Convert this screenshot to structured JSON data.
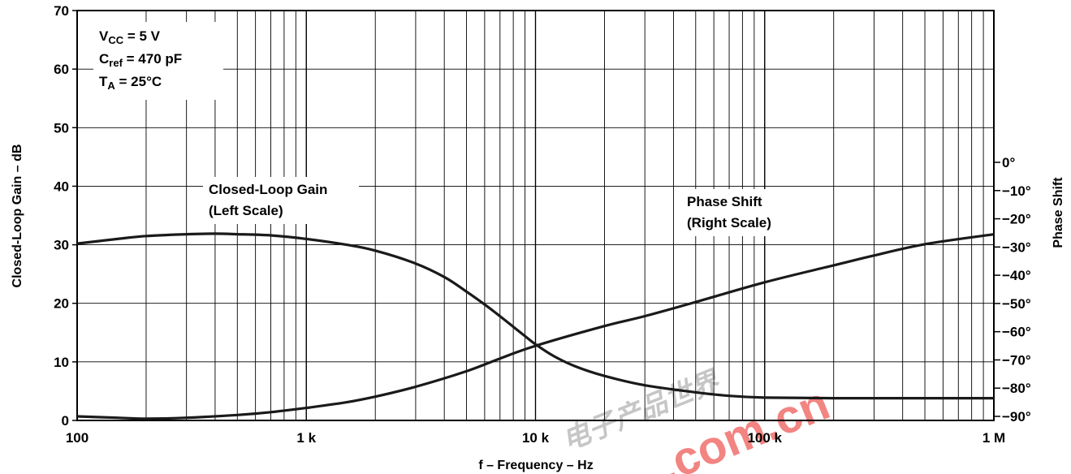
{
  "chart_data": {
    "type": "line",
    "xlabel": "f – Frequency – Hz",
    "ylabel_left": "Closed-Loop Gain – dB",
    "ylabel_right": "Phase Shift",
    "x_scale": "log",
    "xlim": [
      100,
      1000000
    ],
    "ylim_left": [
      0,
      70
    ],
    "ylim_right": [
      -90,
      0
    ],
    "x_ticks": [
      {
        "value": 100,
        "label": "100"
      },
      {
        "value": 1000,
        "label": "1 k"
      },
      {
        "value": 10000,
        "label": "10 k"
      },
      {
        "value": 100000,
        "label": "100 k"
      },
      {
        "value": 1000000,
        "label": "1 M"
      }
    ],
    "y_ticks_left": [
      "0",
      "10",
      "20",
      "30",
      "40",
      "50",
      "60",
      "70"
    ],
    "y_ticks_right": [
      "0°",
      "−10°",
      "−20°",
      "−30°",
      "−40°",
      "−50°",
      "−60°",
      "−70°",
      "−80°",
      "−90°"
    ],
    "grid": true,
    "conditions": [
      {
        "base": "V",
        "sub": "CC",
        "rest": " = 5 V"
      },
      {
        "base": "C",
        "sub": "ref",
        "rest": " = 470 pF"
      },
      {
        "base": "T",
        "sub": "A",
        "rest": " = 25°C"
      }
    ],
    "annotations": [
      {
        "line1": "Closed-Loop Gain",
        "line2": "(Left Scale)"
      },
      {
        "line1": "Phase Shift",
        "line2": "(Right Scale)"
      }
    ],
    "series": [
      {
        "axis": "left",
        "x": [
          100,
          150,
          200,
          300,
          400,
          500,
          700,
          1000,
          1500,
          2000,
          3000,
          4000,
          5000,
          6000,
          7000,
          8000,
          9000,
          10000,
          12000,
          15000,
          20000,
          30000,
          50000,
          70000,
          100000,
          200000,
          500000,
          1000000
        ],
        "values": [
          30.2,
          31.0,
          31.5,
          31.8,
          31.9,
          31.8,
          31.6,
          31.0,
          30.0,
          29.0,
          26.8,
          24.5,
          22.0,
          19.8,
          17.8,
          16.0,
          14.4,
          13.0,
          11.0,
          9.2,
          7.6,
          6.0,
          4.8,
          4.2,
          3.9,
          3.8,
          3.8,
          3.8
        ]
      },
      {
        "axis": "right",
        "x": [
          100,
          150,
          200,
          300,
          500,
          700,
          1000,
          1500,
          2000,
          3000,
          5000,
          7000,
          10000,
          20000,
          30000,
          50000,
          100000,
          200000,
          300000,
          500000,
          1000000
        ],
        "values": [
          -90.0,
          -90.5,
          -90.8,
          -90.5,
          -89.5,
          -88.5,
          -87.0,
          -85.0,
          -83.0,
          -79.5,
          -74.0,
          -69.5,
          -65.0,
          -58.0,
          -54.5,
          -49.5,
          -42.5,
          -36.5,
          -33.0,
          -29.0,
          -25.5
        ]
      }
    ]
  },
  "watermark": {
    "text": ".com.cn",
    "cn_text": "电子产品世界",
    "colors": {
      "primary": "#e8211b"
    }
  },
  "colors": {
    "line": "#1a1a1a",
    "grid": "#000000",
    "background": "#ffffff"
  }
}
